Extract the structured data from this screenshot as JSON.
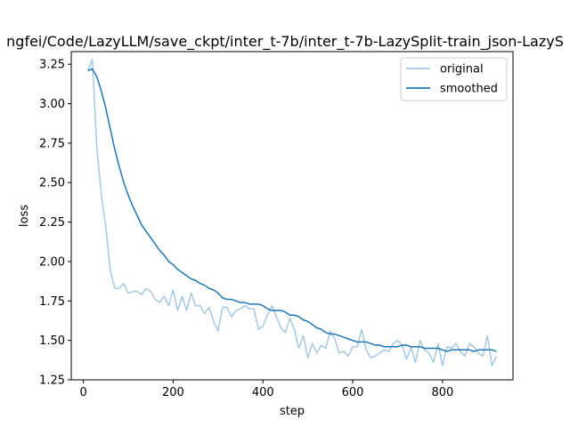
{
  "chart_data": {
    "type": "line",
    "title": "ngfei/Code/LazyLLM/save_ckpt/inter_t-7b/inter_t-7b-LazySplit-train_json-LazyS",
    "xlabel": "step",
    "ylabel": "loss",
    "xlim": [
      -27,
      957
    ],
    "ylim": [
      1.25,
      3.33
    ],
    "xticks": [
      0,
      200,
      400,
      600,
      800
    ],
    "yticks": [
      1.25,
      1.5,
      1.75,
      2.0,
      2.25,
      2.5,
      2.75,
      3.0,
      3.25
    ],
    "xtick_labels": [
      "0",
      "200",
      "400",
      "600",
      "800"
    ],
    "ytick_labels": [
      "1.25",
      "1.50",
      "1.75",
      "2.00",
      "2.25",
      "2.50",
      "2.75",
      "3.00",
      "3.25"
    ],
    "grid": false,
    "legend_position": "top-right",
    "series": [
      {
        "name": "original",
        "color": "#1f77b4",
        "alpha": 0.4,
        "x": [
          10,
          20,
          30,
          40,
          50,
          60,
          70,
          80,
          90,
          100,
          110,
          120,
          130,
          140,
          150,
          160,
          170,
          180,
          190,
          200,
          210,
          220,
          230,
          240,
          250,
          260,
          270,
          280,
          290,
          300,
          310,
          320,
          330,
          340,
          350,
          360,
          370,
          380,
          390,
          400,
          410,
          420,
          430,
          440,
          450,
          460,
          470,
          480,
          490,
          500,
          510,
          520,
          530,
          540,
          550,
          560,
          570,
          580,
          590,
          600,
          610,
          620,
          630,
          640,
          650,
          660,
          670,
          680,
          690,
          700,
          710,
          720,
          730,
          740,
          750,
          760,
          770,
          780,
          790,
          800,
          810,
          820,
          830,
          840,
          850,
          860,
          870,
          880,
          890,
          900,
          910,
          920
        ],
        "y": [
          3.21,
          3.28,
          2.72,
          2.42,
          2.22,
          1.94,
          1.83,
          1.83,
          1.86,
          1.8,
          1.81,
          1.81,
          1.79,
          1.83,
          1.81,
          1.76,
          1.74,
          1.78,
          1.72,
          1.82,
          1.69,
          1.78,
          1.69,
          1.8,
          1.72,
          1.72,
          1.67,
          1.71,
          1.62,
          1.56,
          1.71,
          1.71,
          1.65,
          1.69,
          1.7,
          1.72,
          1.7,
          1.7,
          1.57,
          1.59,
          1.66,
          1.72,
          1.65,
          1.58,
          1.55,
          1.64,
          1.57,
          1.45,
          1.53,
          1.39,
          1.48,
          1.42,
          1.47,
          1.45,
          1.56,
          1.51,
          1.42,
          1.43,
          1.4,
          1.46,
          1.46,
          1.57,
          1.44,
          1.39,
          1.4,
          1.42,
          1.44,
          1.43,
          1.48,
          1.5,
          1.47,
          1.38,
          1.46,
          1.36,
          1.5,
          1.44,
          1.42,
          1.36,
          1.48,
          1.34,
          1.46,
          1.45,
          1.48,
          1.43,
          1.4,
          1.48,
          1.46,
          1.42,
          1.4,
          1.53,
          1.34,
          1.4
        ]
      },
      {
        "name": "smoothed",
        "color": "#1f77b4",
        "alpha": 1.0,
        "x": [
          10,
          20,
          30,
          40,
          50,
          60,
          70,
          80,
          90,
          100,
          110,
          120,
          130,
          140,
          150,
          160,
          170,
          180,
          190,
          200,
          210,
          220,
          230,
          240,
          250,
          260,
          270,
          280,
          290,
          300,
          310,
          320,
          330,
          340,
          350,
          360,
          370,
          380,
          390,
          400,
          410,
          420,
          430,
          440,
          450,
          460,
          470,
          480,
          490,
          500,
          510,
          520,
          530,
          540,
          550,
          560,
          570,
          580,
          590,
          600,
          610,
          620,
          630,
          640,
          650,
          660,
          670,
          680,
          690,
          700,
          710,
          720,
          730,
          740,
          750,
          760,
          770,
          780,
          790,
          800,
          810,
          820,
          830,
          840,
          850,
          860,
          870,
          880,
          890,
          900,
          910,
          920
        ],
        "y": [
          3.21,
          3.22,
          3.17,
          3.08,
          2.97,
          2.84,
          2.71,
          2.6,
          2.5,
          2.42,
          2.35,
          2.29,
          2.23,
          2.19,
          2.15,
          2.11,
          2.07,
          2.04,
          2.0,
          1.98,
          1.95,
          1.93,
          1.91,
          1.89,
          1.88,
          1.86,
          1.85,
          1.83,
          1.82,
          1.8,
          1.77,
          1.76,
          1.76,
          1.75,
          1.74,
          1.74,
          1.73,
          1.73,
          1.73,
          1.72,
          1.7,
          1.69,
          1.69,
          1.69,
          1.68,
          1.66,
          1.66,
          1.65,
          1.63,
          1.62,
          1.6,
          1.58,
          1.57,
          1.55,
          1.54,
          1.54,
          1.53,
          1.52,
          1.51,
          1.5,
          1.49,
          1.49,
          1.49,
          1.48,
          1.47,
          1.47,
          1.46,
          1.46,
          1.46,
          1.46,
          1.47,
          1.47,
          1.46,
          1.46,
          1.46,
          1.45,
          1.45,
          1.45,
          1.45,
          1.44,
          1.43,
          1.44,
          1.44,
          1.44,
          1.44,
          1.44,
          1.43,
          1.44,
          1.44,
          1.44,
          1.44,
          1.43
        ]
      }
    ]
  }
}
